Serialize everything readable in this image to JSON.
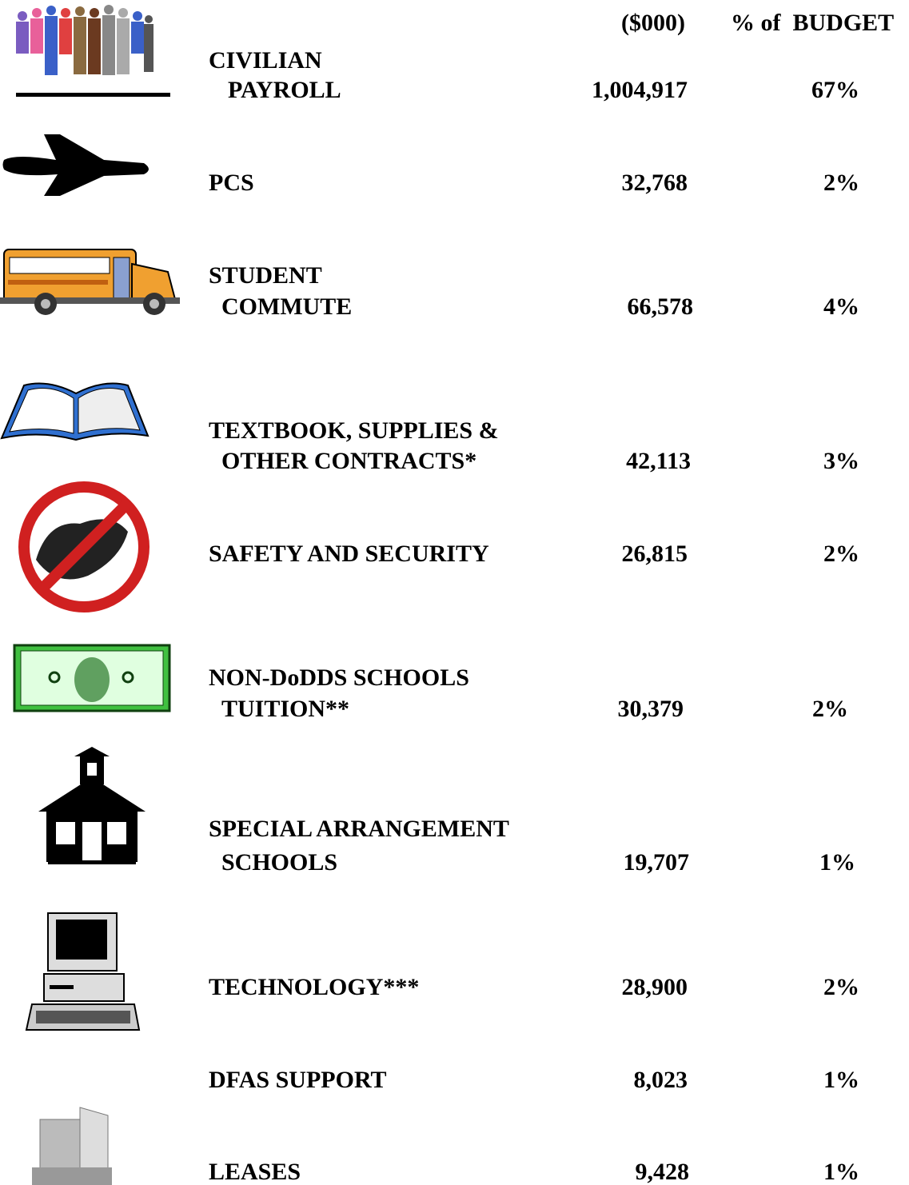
{
  "header": {
    "amount": "($000)",
    "percent": "% of  BUDGET"
  },
  "rows": [
    {
      "label": [
        "CIVILIAN",
        "PAYROLL"
      ],
      "amount": "1,004,917",
      "percent": "67%"
    },
    {
      "label": [
        "PCS"
      ],
      "amount": "32,768",
      "percent": "2%"
    },
    {
      "label": [
        "STUDENT",
        "COMMUTE"
      ],
      "amount": "66,578",
      "percent": "4%"
    },
    {
      "label": [
        "TEXTBOOK, SUPPLIES &",
        "OTHER CONTRACTS*"
      ],
      "amount": "42,113",
      "percent": "3%"
    },
    {
      "label": [
        "SAFETY AND SECURITY"
      ],
      "amount": "26,815",
      "percent": "2%"
    },
    {
      "label": [
        "NON-DoDDS SCHOOLS",
        "TUITION**"
      ],
      "amount": "30,379",
      "percent": "2%"
    },
    {
      "label": [
        "SPECIAL ARRANGEMENT",
        "SCHOOLS"
      ],
      "amount": "19,707",
      "percent": "1%"
    },
    {
      "label": [
        "TECHNOLOGY***"
      ],
      "amount": "28,900",
      "percent": "2%"
    },
    {
      "label": [
        "DFAS SUPPORT"
      ],
      "amount": "8,023",
      "percent": "1%"
    },
    {
      "label": [
        "LEASES"
      ],
      "amount": "9,428",
      "percent": "1%"
    }
  ]
}
